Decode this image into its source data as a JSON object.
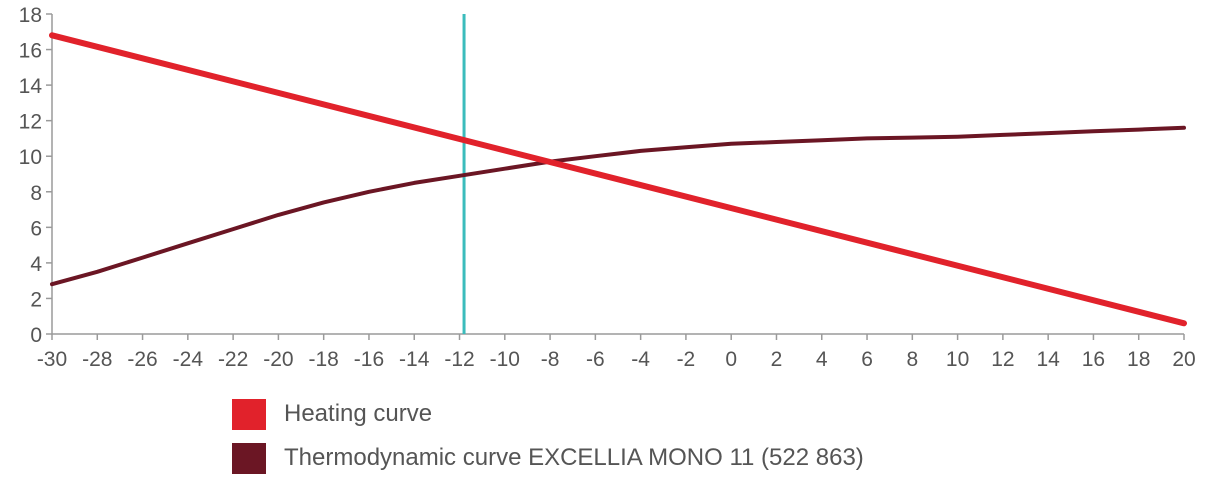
{
  "chart_data": {
    "type": "line",
    "xlim": [
      -30,
      20
    ],
    "ylim": [
      0,
      18
    ],
    "x_ticks": [
      -30,
      -28,
      -26,
      -24,
      -22,
      -20,
      -18,
      -16,
      -14,
      -12,
      -10,
      -8,
      -6,
      -4,
      -2,
      0,
      2,
      4,
      6,
      8,
      10,
      12,
      14,
      16,
      18,
      20
    ],
    "y_ticks": [
      0,
      2,
      4,
      6,
      8,
      10,
      12,
      14,
      16,
      18
    ],
    "grid": false,
    "legend_position": "bottom",
    "series": [
      {
        "name": "Heating curve",
        "color": "#e1222b",
        "x": [
          -30,
          20
        ],
        "y": [
          16.8,
          0.6
        ]
      },
      {
        "name": "Thermodynamic curve EXCELLIA MONO 11 (522 863)",
        "color": "#6b1624",
        "x": [
          -30,
          -28,
          -26,
          -24,
          -22,
          -20,
          -18,
          -16,
          -14,
          -12,
          -10,
          -8,
          -6,
          -4,
          -2,
          0,
          2,
          4,
          6,
          8,
          10,
          12,
          14,
          16,
          18,
          20
        ],
        "y": [
          2.8,
          3.5,
          4.3,
          5.1,
          5.9,
          6.7,
          7.4,
          8.0,
          8.5,
          8.9,
          9.3,
          9.7,
          10.0,
          10.3,
          10.5,
          10.7,
          10.8,
          10.9,
          11.0,
          11.05,
          11.1,
          11.2,
          11.3,
          11.4,
          11.5,
          11.6
        ]
      }
    ],
    "reference_line": {
      "x": -11.8,
      "color": "#3bbcbc"
    }
  }
}
